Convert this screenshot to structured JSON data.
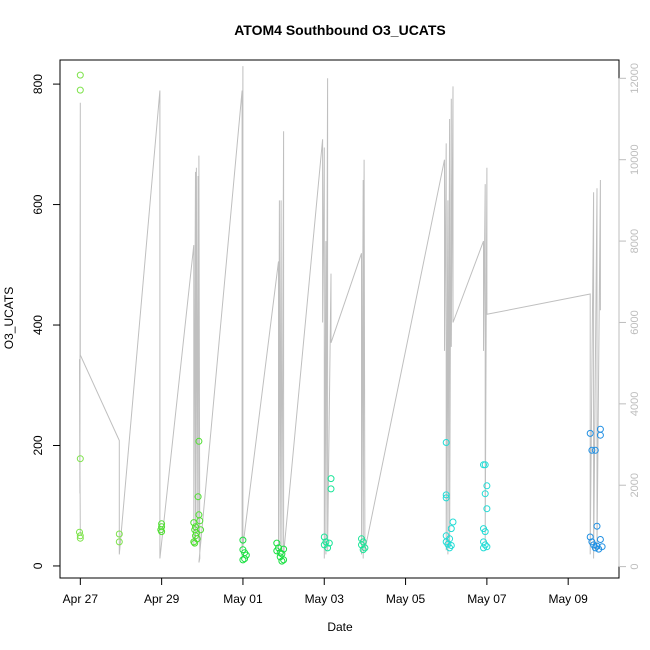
{
  "chart_data": {
    "type": "scatter",
    "title": "ATOM4 Southbound O3_UCATS",
    "xlabel": "Date",
    "ylabel": "O3_UCATS",
    "xlim": [
      "2018-04-26T12:00",
      "2018-05-10T06:00"
    ],
    "ylim": [
      -20,
      840
    ],
    "y2lim": [
      -280,
      12450
    ],
    "x_ticks": [
      {
        "date": "2018-04-27",
        "label": "Apr 27"
      },
      {
        "date": "2018-04-29",
        "label": "Apr 29"
      },
      {
        "date": "2018-05-01",
        "label": "May 01"
      },
      {
        "date": "2018-05-03",
        "label": "May 03"
      },
      {
        "date": "2018-05-05",
        "label": "May 05"
      },
      {
        "date": "2018-05-07",
        "label": "May 07"
      },
      {
        "date": "2018-05-09",
        "label": "May 09"
      }
    ],
    "y_ticks": [
      0,
      200,
      400,
      600,
      800
    ],
    "y2_ticks": [
      0,
      2000,
      4000,
      6000,
      8000,
      10000,
      12000
    ],
    "series": [
      {
        "color": "#7de34a",
        "points": [
          [
            "2018-04-27T00:00",
            815
          ],
          [
            "2018-04-27T00:00",
            790
          ],
          [
            "2018-04-27T00:00",
            178
          ],
          [
            "2018-04-26T23:30",
            56
          ],
          [
            "2018-04-27T00:00",
            50
          ],
          [
            "2018-04-27T00:00",
            46
          ],
          [
            "2018-04-27T23:00",
            53
          ],
          [
            "2018-04-27T23:00",
            40
          ]
        ]
      },
      {
        "color": "#4fe030",
        "points": [
          [
            "2018-04-29T00:00",
            70
          ],
          [
            "2018-04-29T00:00",
            65
          ],
          [
            "2018-04-28T23:30",
            60
          ],
          [
            "2018-04-29T00:00",
            57
          ],
          [
            "2018-04-29T19:00",
            72
          ],
          [
            "2018-04-29T20:00",
            65
          ],
          [
            "2018-04-29T19:30",
            60
          ],
          [
            "2018-04-29T20:30",
            55
          ],
          [
            "2018-04-29T20:00",
            50
          ],
          [
            "2018-04-29T21:00",
            45
          ],
          [
            "2018-04-29T19:00",
            40
          ],
          [
            "2018-04-29T19:30",
            38
          ],
          [
            "2018-04-29T22:00",
            85
          ],
          [
            "2018-04-29T22:30",
            75
          ],
          [
            "2018-04-29T23:00",
            60
          ],
          [
            "2018-04-29T21:30",
            115
          ],
          [
            "2018-04-29T22:00",
            207
          ]
        ]
      },
      {
        "color": "#18e040",
        "points": [
          [
            "2018-05-01T00:00",
            43
          ],
          [
            "2018-05-01T00:00",
            27
          ],
          [
            "2018-05-01T01:00",
            22
          ],
          [
            "2018-05-01T02:00",
            18
          ],
          [
            "2018-05-01T00:00",
            10
          ],
          [
            "2018-05-01T01:00",
            12
          ],
          [
            "2018-05-01T20:00",
            38
          ],
          [
            "2018-05-01T21:00",
            30
          ],
          [
            "2018-05-01T20:00",
            25
          ],
          [
            "2018-05-01T22:00",
            22
          ],
          [
            "2018-05-01T23:00",
            20
          ],
          [
            "2018-05-02T00:00",
            28
          ],
          [
            "2018-05-01T22:00",
            15
          ],
          [
            "2018-05-02T00:00",
            10
          ],
          [
            "2018-05-01T23:00",
            8
          ]
        ]
      },
      {
        "color": "#19e598",
        "points": [
          [
            "2018-05-03T00:00",
            48
          ],
          [
            "2018-05-03T01:00",
            40
          ],
          [
            "2018-05-03T00:00",
            35
          ],
          [
            "2018-05-03T03:00",
            38
          ],
          [
            "2018-05-03T02:00",
            30
          ],
          [
            "2018-05-03T04:00",
            145
          ],
          [
            "2018-05-03T04:00",
            128
          ],
          [
            "2018-05-03T22:00",
            45
          ],
          [
            "2018-05-03T23:00",
            40
          ],
          [
            "2018-05-03T22:00",
            35
          ],
          [
            "2018-05-04T00:00",
            30
          ],
          [
            "2018-05-03T23:00",
            27
          ]
        ]
      },
      {
        "color": "#22dcd6",
        "points": [
          [
            "2018-05-06T00:00",
            205
          ],
          [
            "2018-05-06T00:00",
            118
          ],
          [
            "2018-05-06T00:00",
            113
          ],
          [
            "2018-05-06T04:00",
            73
          ],
          [
            "2018-05-06T03:00",
            62
          ],
          [
            "2018-05-06T00:00",
            50
          ],
          [
            "2018-05-06T02:00",
            45
          ],
          [
            "2018-05-06T00:00",
            40
          ],
          [
            "2018-05-06T01:00",
            36
          ],
          [
            "2018-05-06T03:00",
            34
          ],
          [
            "2018-05-06T02:00",
            30
          ],
          [
            "2018-05-06T22:00",
            168
          ],
          [
            "2018-05-06T23:00",
            168
          ],
          [
            "2018-05-07T00:00",
            133
          ],
          [
            "2018-05-06T23:00",
            120
          ],
          [
            "2018-05-07T00:00",
            95
          ],
          [
            "2018-05-06T22:00",
            62
          ],
          [
            "2018-05-06T23:00",
            57
          ],
          [
            "2018-05-06T22:00",
            40
          ],
          [
            "2018-05-06T23:00",
            35
          ],
          [
            "2018-05-07T00:00",
            32
          ],
          [
            "2018-05-06T22:00",
            30
          ]
        ]
      },
      {
        "color": "#1f8fe3",
        "points": [
          [
            "2018-05-09T13:00",
            220
          ],
          [
            "2018-05-09T19:00",
            227
          ],
          [
            "2018-05-09T19:00",
            217
          ],
          [
            "2018-05-09T14:00",
            192
          ],
          [
            "2018-05-09T16:00",
            192
          ],
          [
            "2018-05-09T17:00",
            66
          ],
          [
            "2018-05-09T13:00",
            48
          ],
          [
            "2018-05-09T19:00",
            44
          ],
          [
            "2018-05-09T14:00",
            40
          ],
          [
            "2018-05-09T15:00",
            35
          ],
          [
            "2018-05-09T17:00",
            33
          ],
          [
            "2018-05-09T20:00",
            32
          ],
          [
            "2018-05-09T16:00",
            30
          ],
          [
            "2018-05-09T18:00",
            28
          ]
        ]
      }
    ],
    "secondary_line": {
      "color": "#bfbfbf",
      "points": [
        [
          "2018-04-27T00:00",
          800
        ],
        [
          "2018-04-26T23:30",
          5100
        ],
        [
          "2018-04-26T23:45",
          1800
        ],
        [
          "2018-04-27T00:00",
          11400
        ],
        [
          "2018-04-27T00:00",
          5200
        ],
        [
          "2018-04-27T23:00",
          3100
        ],
        [
          "2018-04-27T23:00",
          300
        ],
        [
          "2018-04-28T23:00",
          11700
        ],
        [
          "2018-04-28T23:00",
          200
        ],
        [
          "2018-04-29T19:00",
          7900
        ],
        [
          "2018-04-29T19:00",
          500
        ],
        [
          "2018-04-29T20:00",
          9700
        ],
        [
          "2018-04-29T20:00",
          600
        ],
        [
          "2018-04-29T20:30",
          9800
        ],
        [
          "2018-04-29T21:00",
          800
        ],
        [
          "2018-04-29T21:30",
          9600
        ],
        [
          "2018-04-29T22:00",
          600
        ],
        [
          "2018-04-29T22:00",
          10100
        ],
        [
          "2018-04-29T22:30",
          200
        ],
        [
          "2018-04-29T22:00",
          100
        ],
        [
          "2018-04-30T23:30",
          11700
        ],
        [
          "2018-04-30T23:30",
          200
        ],
        [
          "2018-05-01T00:00",
          12300
        ],
        [
          "2018-05-01T00:00",
          500
        ],
        [
          "2018-05-01T21:00",
          7500
        ],
        [
          "2018-05-01T21:00",
          300
        ],
        [
          "2018-05-01T21:30",
          9000
        ],
        [
          "2018-05-01T22:00",
          500
        ],
        [
          "2018-05-01T22:30",
          9000
        ],
        [
          "2018-05-01T23:00",
          400
        ],
        [
          "2018-05-02T00:00",
          10700
        ],
        [
          "2018-05-02T00:00",
          300
        ],
        [
          "2018-05-02T23:00",
          10500
        ],
        [
          "2018-05-02T23:00",
          6000
        ],
        [
          "2018-05-03T00:00",
          10300
        ],
        [
          "2018-05-03T00:00",
          200
        ],
        [
          "2018-05-03T01:00",
          8000
        ],
        [
          "2018-05-03T01:00",
          300
        ],
        [
          "2018-05-03T02:00",
          12000
        ],
        [
          "2018-05-03T02:00",
          400
        ],
        [
          "2018-05-03T04:00",
          7200
        ],
        [
          "2018-05-03T04:00",
          5500
        ],
        [
          "2018-05-03T22:00",
          7700
        ],
        [
          "2018-05-03T22:00",
          300
        ],
        [
          "2018-05-03T23:00",
          9500
        ],
        [
          "2018-05-03T23:00",
          200
        ],
        [
          "2018-05-03T23:30",
          10000
        ],
        [
          "2018-05-04T00:00",
          400
        ],
        [
          "2018-05-05T23:00",
          10000
        ],
        [
          "2018-05-05T23:00",
          5300
        ],
        [
          "2018-05-06T00:00",
          10400
        ],
        [
          "2018-05-06T00:00",
          400
        ],
        [
          "2018-05-06T01:00",
          9000
        ],
        [
          "2018-05-06T01:00",
          300
        ],
        [
          "2018-05-06T02:00",
          11000
        ],
        [
          "2018-05-06T02:00",
          500
        ],
        [
          "2018-05-06T03:00",
          11500
        ],
        [
          "2018-05-06T03:00",
          5400
        ],
        [
          "2018-05-06T04:00",
          11800
        ],
        [
          "2018-05-06T04:00",
          6000
        ],
        [
          "2018-05-06T22:00",
          8000
        ],
        [
          "2018-05-06T22:00",
          5300
        ],
        [
          "2018-05-06T23:00",
          9400
        ],
        [
          "2018-05-06T23:00",
          600
        ],
        [
          "2018-05-07T00:00",
          9800
        ],
        [
          "2018-05-07T00:00",
          6200
        ],
        [
          "2018-05-09T13:00",
          6700
        ],
        [
          "2018-05-09T13:00",
          300
        ],
        [
          "2018-05-09T15:00",
          9200
        ],
        [
          "2018-05-09T15:00",
          200
        ],
        [
          "2018-05-09T17:00",
          9300
        ],
        [
          "2018-05-09T17:00",
          400
        ],
        [
          "2018-05-09T19:00",
          9500
        ],
        [
          "2018-05-09T19:00",
          6300
        ]
      ]
    }
  }
}
